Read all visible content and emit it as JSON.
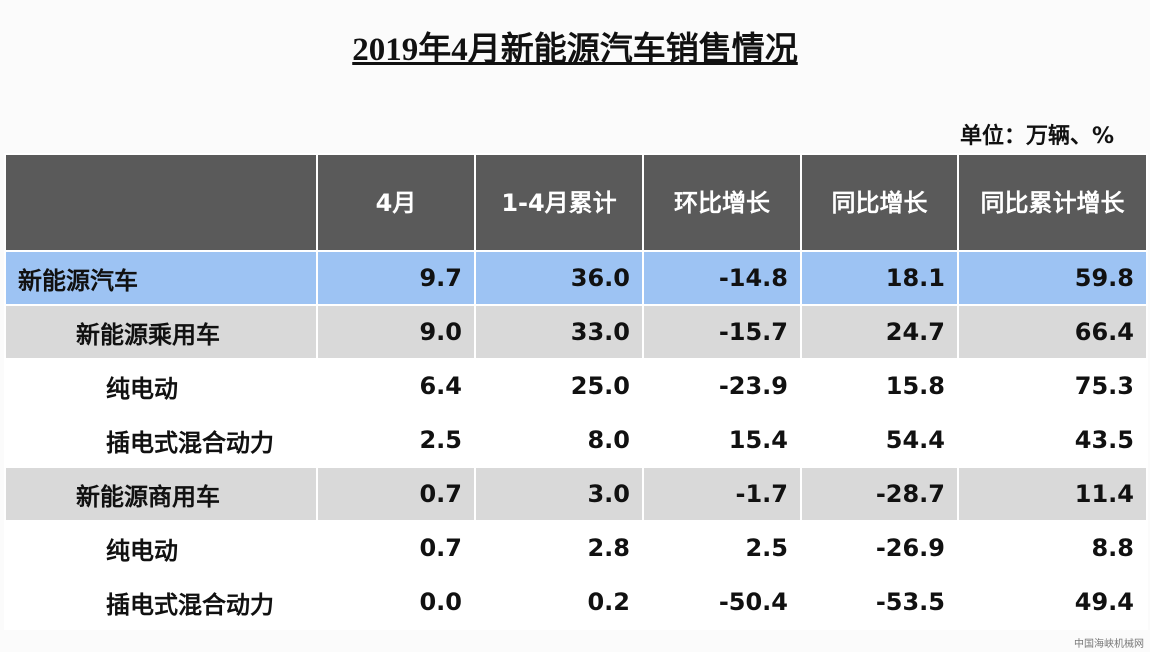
{
  "title": "2019年4月新能源汽车销售情况",
  "unit": "单位：万辆、%",
  "table": {
    "header": [
      "4月",
      "1-4月累计",
      "环比增长",
      "同比增长",
      "同比累计增长"
    ],
    "rows": [
      [
        "新能源汽车",
        "9.7",
        "36.0",
        "-14.8",
        "18.1",
        "59.8"
      ],
      [
        "新能源乘用车",
        "9.0",
        "33.0",
        "-15.7",
        "24.7",
        "66.4"
      ],
      [
        "纯电动",
        "6.4",
        "25.0",
        "-23.9",
        "15.8",
        "75.3"
      ],
      [
        "插电式混合动力",
        "2.5",
        "8.0",
        "15.4",
        "54.4",
        "43.5"
      ],
      [
        "新能源商用车",
        "0.7",
        "3.0",
        "-1.7",
        "-28.7",
        "11.4"
      ],
      [
        "纯电动",
        "0.7",
        "2.8",
        "2.5",
        "-26.9",
        "8.8"
      ],
      [
        "插电式混合动力",
        "0.0",
        "0.2",
        "-50.4",
        "-53.5",
        "49.4"
      ]
    ]
  },
  "watermark": "中国海峡机械网"
}
